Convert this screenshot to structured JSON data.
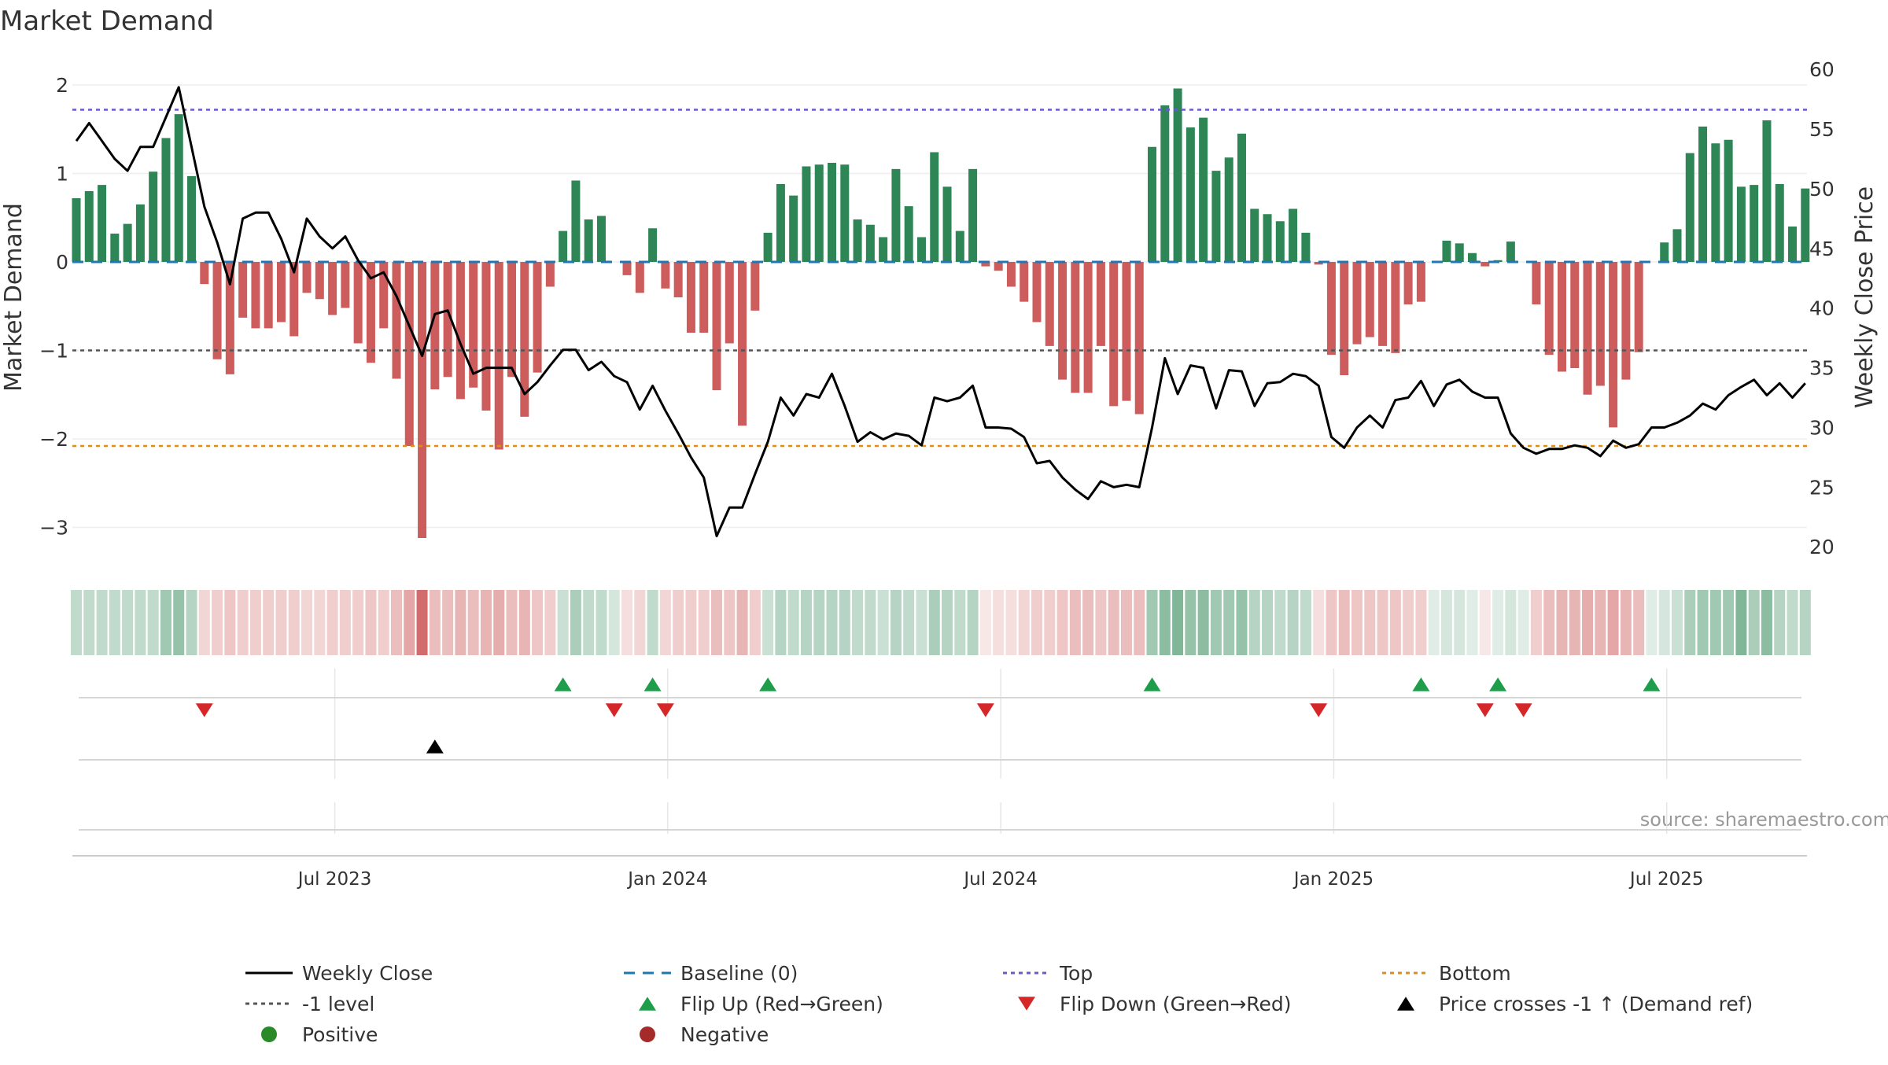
{
  "chart_data": {
    "type": "bar+line",
    "title": "Market Demand",
    "ylabel_left": "Market Demand",
    "ylabel_right": "Weekly Close Price",
    "ylim_left": [
      -3.4,
      2.2
    ],
    "ylim_right": [
      18.5,
      61
    ],
    "yticks_left": [
      2,
      1,
      0,
      -1,
      -2,
      -3
    ],
    "ytick_labels_left": [
      "2",
      "1",
      "0",
      "−1",
      "−2",
      "−3"
    ],
    "yticks_right": [
      60,
      55,
      50,
      45,
      40,
      35,
      30,
      25,
      20
    ],
    "ytick_labels_right": [
      "60",
      "55",
      "50",
      "45",
      "40",
      "35",
      "30",
      "25",
      "20"
    ],
    "x_ticks": [
      {
        "label": "Jul 2023",
        "week": 20
      },
      {
        "label": "Jan 2024",
        "week": 46
      },
      {
        "label": "Jul 2024",
        "week": 72
      },
      {
        "label": "Jan 2025",
        "week": 98
      },
      {
        "label": "Jul 2025",
        "week": 124
      }
    ],
    "reference_lines": {
      "top": 1.72,
      "minus_one": -1.0,
      "bottom": -2.08,
      "baseline": 0
    },
    "demand": [
      0.72,
      0.8,
      0.87,
      0.32,
      0.43,
      0.65,
      1.02,
      1.4,
      1.67,
      0.97,
      -0.25,
      -1.1,
      -1.27,
      -0.63,
      -0.75,
      -0.75,
      -0.68,
      -0.84,
      -0.35,
      -0.42,
      -0.6,
      -0.52,
      -0.92,
      -1.14,
      -0.75,
      -1.32,
      -2.08,
      -3.12,
      -1.44,
      -1.3,
      -1.55,
      -1.42,
      -1.68,
      -2.12,
      -1.3,
      -1.75,
      -1.25,
      -0.28,
      0.35,
      0.92,
      0.48,
      0.52,
      0,
      -0.15,
      -0.35,
      0.38,
      -0.3,
      -0.4,
      -0.8,
      -0.8,
      -1.45,
      -0.92,
      -1.85,
      -0.55,
      0.33,
      0.88,
      0.75,
      1.08,
      1.1,
      1.12,
      1.1,
      0.48,
      0.42,
      0.28,
      1.05,
      0.63,
      0.28,
      1.24,
      0.85,
      0.35,
      1.05,
      -0.05,
      -0.1,
      -0.28,
      -0.45,
      -0.68,
      -0.95,
      -1.33,
      -1.48,
      -1.48,
      -0.95,
      -1.63,
      -1.57,
      -1.72,
      1.3,
      1.77,
      1.96,
      1.52,
      1.63,
      1.03,
      1.18,
      1.45,
      0.6,
      0.54,
      0.46,
      0.6,
      0.33,
      -0.03,
      -1.05,
      -1.28,
      -0.93,
      -0.85,
      -0.95,
      -1.03,
      -0.48,
      -0.45,
      0,
      0.24,
      0.21,
      0.1,
      -0.05,
      0.02,
      0.23,
      0,
      -0.48,
      -1.05,
      -1.24,
      -1.2,
      -1.5,
      -1.4,
      -1.87,
      -1.33,
      -1.02,
      0,
      0.22,
      0.37,
      1.23,
      1.53,
      1.34,
      1.38,
      0.85,
      0.87,
      1.6,
      0.88,
      0.4,
      0.83
    ],
    "weekly_close": [
      54.0,
      55.5,
      54.0,
      52.5,
      51.5,
      53.5,
      53.5,
      56.0,
      58.5,
      53.5,
      48.5,
      45.5,
      42.0,
      47.5,
      48.0,
      48.0,
      45.8,
      43.0,
      47.5,
      46.0,
      45.0,
      46.0,
      44.0,
      42.5,
      43.0,
      41.0,
      38.5,
      36.0,
      39.5,
      39.8,
      37.0,
      34.5,
      35.0,
      35.0,
      35.0,
      32.8,
      33.8,
      35.2,
      36.5,
      36.5,
      34.8,
      35.5,
      34.3,
      33.8,
      31.5,
      33.5,
      31.4,
      29.5,
      27.5,
      25.8,
      20.9,
      23.3,
      23.3,
      26.1,
      28.8,
      32.5,
      31.0,
      32.8,
      32.5,
      34.5,
      31.8,
      28.8,
      29.6,
      29.0,
      29.5,
      29.3,
      28.5,
      32.5,
      32.2,
      32.5,
      33.5,
      30.0,
      30.0,
      29.9,
      29.2,
      27.0,
      27.2,
      25.8,
      24.8,
      24.0,
      25.5,
      25.0,
      25.2,
      25.0,
      30.0,
      35.8,
      32.8,
      35.2,
      35.0,
      31.6,
      34.8,
      34.7,
      31.8,
      33.7,
      33.8,
      34.5,
      34.3,
      33.5,
      29.2,
      28.3,
      30.0,
      31.0,
      30.0,
      32.3,
      32.5,
      33.9,
      31.8,
      33.6,
      34.0,
      33.0,
      32.5,
      32.5,
      29.5,
      28.3,
      27.8,
      28.2,
      28.2,
      28.5,
      28.3,
      27.6,
      28.9,
      28.3,
      28.6,
      30.0,
      30.0,
      30.4,
      31.0,
      32.0,
      31.5,
      32.7,
      33.4,
      34.0,
      32.7,
      33.7,
      32.5,
      33.7
    ],
    "strip_intensity": [
      0.3,
      0.3,
      0.3,
      0.3,
      0.3,
      0.3,
      0.3,
      0.45,
      0.5,
      0.35,
      0.25,
      0.3,
      0.35,
      0.3,
      0.3,
      0.3,
      0.3,
      0.3,
      0.25,
      0.25,
      0.3,
      0.3,
      0.3,
      0.35,
      0.3,
      0.4,
      0.55,
      0.9,
      0.4,
      0.4,
      0.45,
      0.4,
      0.45,
      0.5,
      0.4,
      0.45,
      0.35,
      0.3,
      0.25,
      0.4,
      0.3,
      0.3,
      0.2,
      0.2,
      0.25,
      0.3,
      0.25,
      0.3,
      0.3,
      0.3,
      0.4,
      0.35,
      0.45,
      0.3,
      0.25,
      0.35,
      0.3,
      0.35,
      0.35,
      0.35,
      0.35,
      0.3,
      0.3,
      0.25,
      0.35,
      0.3,
      0.25,
      0.4,
      0.35,
      0.3,
      0.35,
      0.15,
      0.2,
      0.2,
      0.25,
      0.3,
      0.3,
      0.35,
      0.4,
      0.4,
      0.35,
      0.4,
      0.4,
      0.4,
      0.45,
      0.55,
      0.6,
      0.5,
      0.55,
      0.45,
      0.45,
      0.5,
      0.35,
      0.35,
      0.3,
      0.35,
      0.3,
      0.2,
      0.35,
      0.4,
      0.35,
      0.35,
      0.35,
      0.35,
      0.3,
      0.3,
      0.15,
      0.2,
      0.2,
      0.15,
      0.15,
      0.15,
      0.2,
      0.15,
      0.3,
      0.4,
      0.45,
      0.45,
      0.5,
      0.45,
      0.55,
      0.45,
      0.4,
      0.15,
      0.2,
      0.25,
      0.4,
      0.45,
      0.45,
      0.45,
      0.6,
      0.4,
      0.55,
      0.35,
      0.3,
      0.35
    ],
    "flip_up_weeks": [
      38,
      45,
      54,
      84,
      105,
      111,
      123
    ],
    "flip_down_weeks": [
      10,
      42,
      46,
      71,
      97,
      110,
      113
    ],
    "price_cross_weeks": [
      28
    ],
    "source": "source: sharemaestro.com",
    "colors": {
      "positive": "#2e8555",
      "negative": "#cd5c5c",
      "line": "#000000",
      "baseline": "#1f77b4",
      "top": "#6a5acd",
      "minus_one": "#555555",
      "bottom": "#e08c1a",
      "flip_up": "#1e9e4a",
      "flip_down": "#d62728",
      "cross": "#000000",
      "legend_positive": "#2a8a2a",
      "legend_negative": "#a52a2a"
    },
    "legend": [
      {
        "label": "Weekly Close",
        "kind": "line-solid",
        "color": "#000000"
      },
      {
        "label": "Baseline (0)",
        "kind": "line-dash",
        "color": "#1f77b4"
      },
      {
        "label": "Top",
        "kind": "line-dot",
        "color": "#6a5acd"
      },
      {
        "label": "Bottom",
        "kind": "line-dot",
        "color": "#e08c1a"
      },
      {
        "label": "-1 level",
        "kind": "line-dot",
        "color": "#555555"
      },
      {
        "label": "Flip Up (Red→Green)",
        "kind": "tri-up",
        "color": "#1e9e4a"
      },
      {
        "label": "Flip Down (Green→Red)",
        "kind": "tri-down",
        "color": "#d62728"
      },
      {
        "label": "Price crosses -1 ↑ (Demand ref)",
        "kind": "tri-up",
        "color": "#000000"
      },
      {
        "label": "Positive",
        "kind": "dot",
        "color": "#2a8a2a"
      },
      {
        "label": "Negative",
        "kind": "dot",
        "color": "#a52a2a"
      }
    ]
  }
}
